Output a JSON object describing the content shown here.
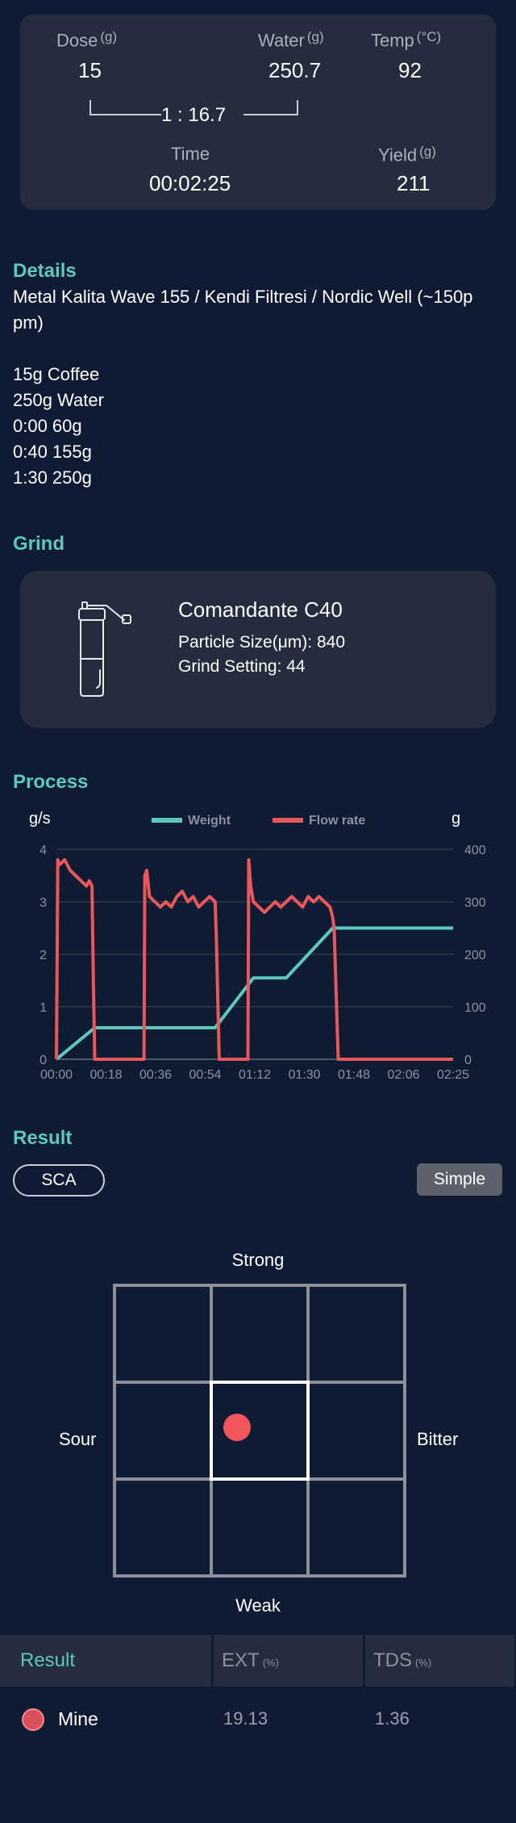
{
  "summary": {
    "dose": {
      "label": "Dose",
      "unit": "(g)",
      "value": "15"
    },
    "water": {
      "label": "Water",
      "unit": "(g)",
      "value": "250.7"
    },
    "temp": {
      "label": "Temp",
      "unit": "(°C)",
      "value": "92"
    },
    "ratio": "1 : 16.7",
    "time": {
      "label": "Time",
      "value": "00:02:25"
    },
    "yield": {
      "label": "Yield",
      "unit": "(g)",
      "value": "211"
    }
  },
  "details": {
    "title": "Details",
    "line1": "Metal Kalita Wave 155 / Kendi Filtresi / Nordic Well (~150p",
    "line2": "pm)",
    "recipe": [
      "15g Coffee",
      "250g Water",
      "0:00 60g",
      "0:40 155g",
      "1:30 250g"
    ]
  },
  "grind": {
    "title": "Grind",
    "grinder": "Comandante C40",
    "particle": "Particle Size(μm): 840",
    "setting": "Grind Setting: 44",
    "icon": "hand-grinder-icon"
  },
  "process": {
    "title": "Process",
    "chart_data": {
      "type": "line",
      "left_axis_label": "g/s",
      "right_axis_label": "g",
      "legend": [
        "Weight",
        "Flow rate"
      ],
      "legend_position": "top-center",
      "grid": true,
      "x_ticks": [
        "00:00",
        "00:18",
        "00:36",
        "00:54",
        "01:12",
        "01:30",
        "01:48",
        "02:06",
        "02:25"
      ],
      "left_ticks": [
        "0",
        "1",
        "2",
        "3",
        "4"
      ],
      "right_ticks": [
        "0",
        "100",
        "200",
        "300",
        "400"
      ],
      "xlim": [
        0,
        145
      ],
      "ylim_left": [
        0,
        4
      ],
      "ylim_right": [
        0,
        400
      ],
      "colors": {
        "weight": "#5fc8be",
        "flow": "#e8585a"
      },
      "series": [
        {
          "name": "Weight",
          "axis": "right",
          "x": [
            0,
            14,
            32,
            58,
            72,
            84,
            101,
            115,
            145
          ],
          "y": [
            0,
            60,
            60,
            60,
            155,
            155,
            250,
            250,
            250
          ]
        },
        {
          "name": "Flow rate",
          "axis": "left",
          "x": [
            0,
            0.5,
            1,
            3,
            5,
            7,
            9,
            11,
            12,
            13,
            13.5,
            14,
            16,
            32,
            32.3,
            33,
            34,
            36,
            38,
            40,
            42,
            44,
            46,
            48,
            50,
            52,
            54,
            56,
            58,
            58.4,
            59.5,
            70,
            70.3,
            71,
            72,
            74,
            76,
            78,
            80,
            82,
            84,
            86,
            88,
            90,
            92,
            94,
            96,
            98,
            100,
            101,
            101.5,
            103,
            145
          ],
          "y": [
            0,
            3.8,
            3.7,
            3.8,
            3.6,
            3.5,
            3.4,
            3.3,
            3.4,
            3.3,
            1.5,
            0,
            0,
            0,
            3.5,
            3.6,
            3.1,
            3.0,
            2.9,
            3.0,
            2.9,
            3.1,
            3.2,
            3.0,
            3.1,
            2.9,
            3.0,
            3.1,
            3.0,
            2.4,
            0,
            0,
            3.8,
            3.3,
            3.0,
            2.9,
            2.8,
            2.9,
            3.0,
            2.9,
            3.0,
            3.1,
            3.0,
            2.9,
            3.1,
            3.0,
            3.1,
            3.0,
            2.9,
            2.7,
            2.5,
            0,
            0
          ]
        }
      ]
    }
  },
  "result": {
    "title": "Result",
    "sca_label": "SCA",
    "simple_label": "Simple",
    "grid_labels": {
      "top": "Strong",
      "bottom": "Weak",
      "left": "Sour",
      "right": "Bitter"
    },
    "selected_cell": {
      "row": 1,
      "col": 1
    },
    "point_color": "#f0565c",
    "table": {
      "headers": {
        "result": "Result",
        "ext": "EXT",
        "ext_unit": "(%)",
        "tds": "TDS",
        "tds_unit": "(%)"
      },
      "row": {
        "name": "Mine",
        "ext": "19.13",
        "tds": "1.36"
      }
    }
  }
}
